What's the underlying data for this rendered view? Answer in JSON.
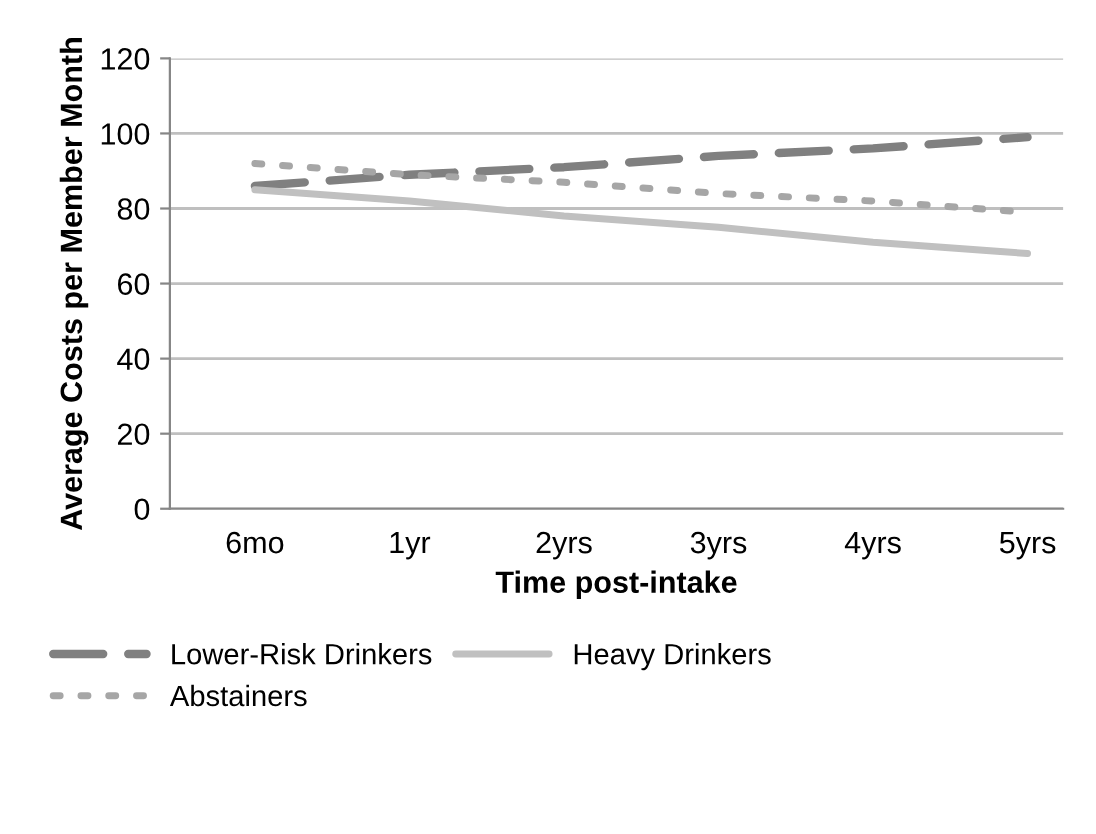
{
  "chart_data": {
    "type": "line",
    "xlabel": "Time post-intake",
    "ylabel": "Average Costs per Member Month",
    "categories": [
      "6mo",
      "1yr",
      "2yrs",
      "3yrs",
      "4yrs",
      "5yrs"
    ],
    "series": [
      {
        "name": "Lower-Risk Drinkers",
        "color": "#808080",
        "line_style": "dashed",
        "values": [
          86,
          89,
          91,
          94,
          96,
          99
        ]
      },
      {
        "name": "Heavy Drinkers",
        "color": "#c0c0c0",
        "line_style": "solid",
        "values": [
          85,
          82,
          78,
          75,
          71,
          68
        ]
      },
      {
        "name": "Abstainers",
        "color": "#a6a6a6",
        "line_style": "dotted",
        "values": [
          92,
          89,
          87,
          84,
          82,
          79
        ]
      }
    ],
    "ylim": [
      0,
      120
    ],
    "yticks": [
      0,
      20,
      40,
      60,
      80,
      100,
      120
    ],
    "grid": "y",
    "legend": "bottom",
    "marker": "none"
  }
}
